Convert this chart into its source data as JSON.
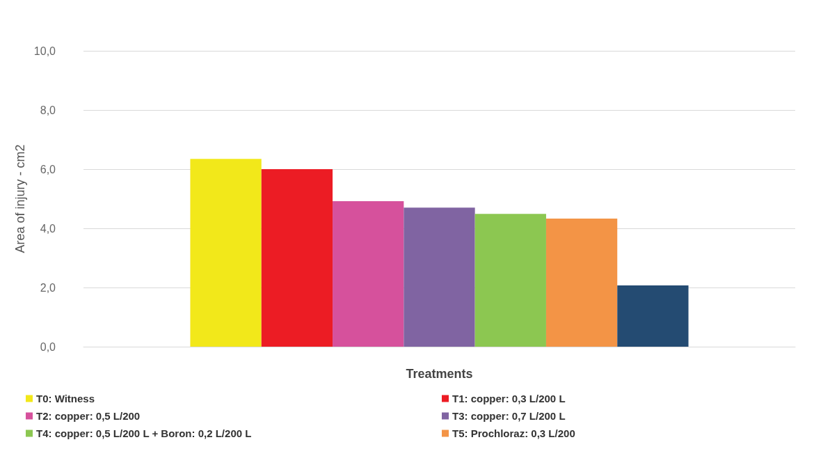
{
  "chart_data": {
    "type": "bar",
    "xlabel": "Treatments",
    "ylabel": "Area of injury - cm2",
    "categories": [
      null
    ],
    "series": [
      {
        "name": "T0: Witness",
        "color": "#f2e81a",
        "values": [
          6.35
        ]
      },
      {
        "name": "T1: copper: 0,3 L/200 L",
        "color": "#ec1c24",
        "values": [
          6.0
        ]
      },
      {
        "name": "T2: copper: 0,5 L/200",
        "color": "#d6519c",
        "values": [
          4.92
        ]
      },
      {
        "name": "T3: copper: 0,7 L/200 L",
        "color": "#8064a2",
        "values": [
          4.7
        ]
      },
      {
        "name": "T4: copper: 0,5 L/200 L + Boron: 0,2 L/200 L",
        "color": "#8cc751",
        "values": [
          4.49
        ]
      },
      {
        "name": "T5: Prochloraz: 0,3 L/200",
        "color": "#f39446",
        "values": [
          4.33
        ]
      },
      {
        "color": "#244b72",
        "values": [
          2.07
        ]
      }
    ],
    "ylim": [
      0,
      10
    ],
    "yticks": [
      {
        "value": 0,
        "label": "0,0"
      },
      {
        "value": 2,
        "label": "2,0"
      },
      {
        "value": 4,
        "label": "4,0"
      },
      {
        "value": 6,
        "label": "6,0"
      },
      {
        "value": 8,
        "label": "8,0"
      },
      {
        "value": 10,
        "label": "10,0"
      }
    ],
    "grid": "y",
    "legend": "bottom"
  }
}
